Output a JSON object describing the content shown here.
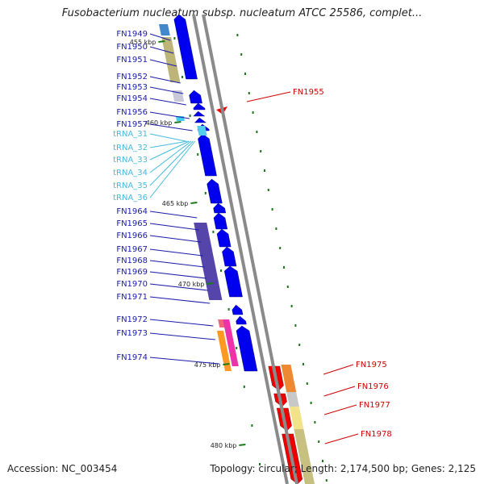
{
  "title": "Fusobacterium nucleatum subsp. nucleatum ATCC 25586, complet...",
  "footer": {
    "accession": "Accession: NC_003454",
    "summary": "Topology: circular; Length: 2,174,500 bp; Genes: 2,125"
  },
  "colors": {
    "left_label": "#1a1aa8",
    "right_label": "#cc0000",
    "trna_label": "#44bbdd",
    "forward_gene": "#0000ee",
    "reverse_gene": "#ee0000",
    "tick": "#1a7a1a",
    "backbone": "#8a8a8a"
  },
  "scale_ticks": [
    "455 kbp",
    "460 kbp",
    "465 kbp",
    "470 kbp",
    "475 kbp",
    "480 kbp"
  ],
  "left_labels": [
    {
      "text": "FN1949",
      "kind": "gene"
    },
    {
      "text": "FN1950",
      "kind": "gene"
    },
    {
      "text": "FN1951",
      "kind": "gene"
    },
    {
      "text": "FN1952",
      "kind": "gene"
    },
    {
      "text": "FN1953",
      "kind": "gene"
    },
    {
      "text": "FN1954",
      "kind": "gene"
    },
    {
      "text": "FN1956",
      "kind": "gene"
    },
    {
      "text": "FN1957",
      "kind": "gene"
    },
    {
      "text": "tRNA_31",
      "kind": "trna"
    },
    {
      "text": "tRNA_32",
      "kind": "trna"
    },
    {
      "text": "tRNA_33",
      "kind": "trna"
    },
    {
      "text": "tRNA_34",
      "kind": "trna"
    },
    {
      "text": "tRNA_35",
      "kind": "trna"
    },
    {
      "text": "tRNA_36",
      "kind": "trna"
    },
    {
      "text": "FN1964",
      "kind": "gene"
    },
    {
      "text": "FN1965",
      "kind": "gene"
    },
    {
      "text": "FN1966",
      "kind": "gene"
    },
    {
      "text": "FN1967",
      "kind": "gene"
    },
    {
      "text": "FN1968",
      "kind": "gene"
    },
    {
      "text": "FN1969",
      "kind": "gene"
    },
    {
      "text": "FN1970",
      "kind": "gene"
    },
    {
      "text": "FN1971",
      "kind": "gene"
    },
    {
      "text": "FN1972",
      "kind": "gene"
    },
    {
      "text": "FN1973",
      "kind": "gene"
    },
    {
      "text": "FN1974",
      "kind": "gene"
    }
  ],
  "right_labels": [
    {
      "text": "FN1955"
    },
    {
      "text": "FN1975"
    },
    {
      "text": "FN1976"
    },
    {
      "text": "FN1977"
    },
    {
      "text": "FN1978"
    }
  ]
}
